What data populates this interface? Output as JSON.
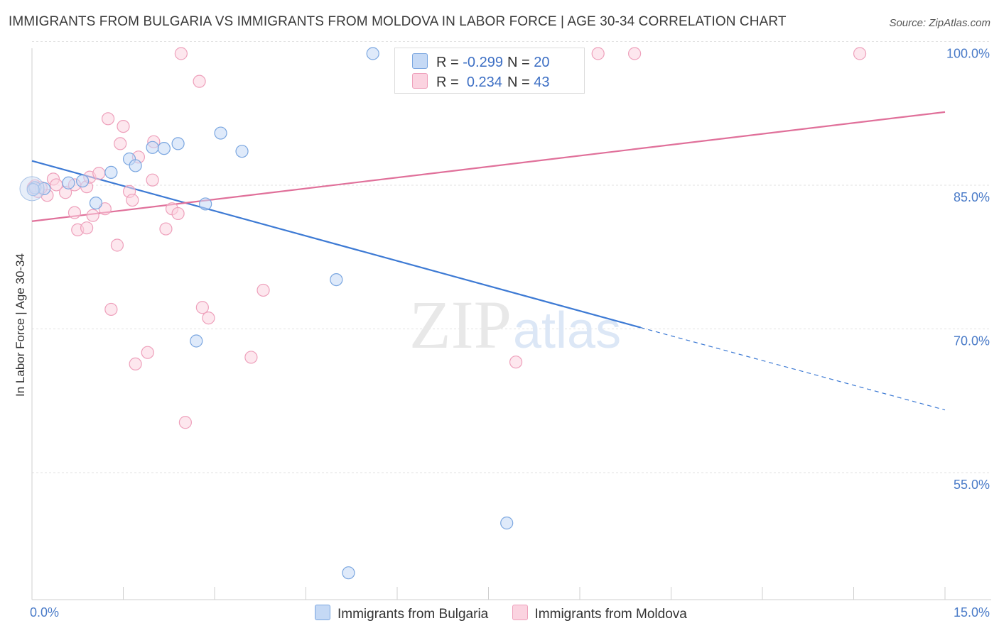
{
  "title": "IMMIGRANTS FROM BULGARIA VS IMMIGRANTS FROM MOLDOVA IN LABOR FORCE | AGE 30-34 CORRELATION CHART",
  "source": "Source: ZipAtlas.com",
  "watermark": {
    "zip": "ZIP",
    "atlas": "atlas"
  },
  "legend": {
    "rows": [
      {
        "r_label": "R =",
        "r_value": "-0.299",
        "n_label": "N =",
        "n_value": "20",
        "color": "#aac8f0",
        "border": "#7aa6e0"
      },
      {
        "r_label": "R =",
        "r_value": "0.234",
        "n_label": "N =",
        "n_value": "43",
        "color": "#f8c0d2",
        "border": "#eea0bb"
      }
    ]
  },
  "bottom_legend": [
    {
      "label": "Immigrants from Bulgaria",
      "color": "#c5d9f5",
      "border": "#7aa6e0"
    },
    {
      "label": "Immigrants from Moldova",
      "color": "#fbd3e0",
      "border": "#eea0bb"
    }
  ],
  "chart_data": {
    "type": "scatter",
    "title": "IMMIGRANTS FROM BULGARIA VS IMMIGRANTS FROM MOLDOVA IN LABOR FORCE | AGE 30-34 CORRELATION CHART",
    "xlabel": "",
    "ylabel": "In Labor Force | Age 30-34",
    "xlim": [
      0,
      15
    ],
    "ylim": [
      43,
      101
    ],
    "x_tick_labels": [
      "0.0%",
      "15.0%"
    ],
    "y_ticks": [
      55,
      70,
      85,
      100
    ],
    "y_tick_labels": [
      "55.0%",
      "70.0%",
      "85.0%",
      "100.0%"
    ],
    "grid": true,
    "series": [
      {
        "name": "Immigrants from Bulgaria",
        "color": "#7aa6e0",
        "fill": "#c5d9f5",
        "line_color": "#3d7ad4",
        "trend": {
          "x0": 0,
          "y0": 88.8,
          "x1": 10.0,
          "y1": 71.4,
          "dash_to_x": 15,
          "dash_to_y": 62.8
        },
        "points": [
          [
            0.05,
            86.0
          ],
          [
            0.2,
            85.9
          ],
          [
            0.6,
            86.5
          ],
          [
            0.83,
            86.7
          ],
          [
            1.05,
            84.4
          ],
          [
            1.3,
            87.6
          ],
          [
            1.6,
            89.0
          ],
          [
            1.7,
            88.3
          ],
          [
            1.98,
            90.2
          ],
          [
            2.17,
            90.1
          ],
          [
            2.4,
            90.6
          ],
          [
            2.85,
            84.3
          ],
          [
            3.1,
            91.7
          ],
          [
            3.45,
            89.8
          ],
          [
            2.7,
            70.0
          ],
          [
            5.0,
            76.4
          ],
          [
            5.6,
            100.0
          ],
          [
            7.8,
            51.0
          ],
          [
            5.2,
            45.8
          ],
          [
            0.02,
            85.8
          ]
        ]
      },
      {
        "name": "Immigrants from Moldova",
        "color": "#eea0bb",
        "fill": "#fbd3e0",
        "line_color": "#e0709a",
        "trend": {
          "x0": 0,
          "y0": 82.5,
          "x1": 15,
          "y1": 93.9
        },
        "points": [
          [
            0.02,
            86.0
          ],
          [
            0.1,
            85.6
          ],
          [
            0.25,
            85.2
          ],
          [
            0.35,
            86.9
          ],
          [
            0.4,
            86.3
          ],
          [
            0.55,
            85.5
          ],
          [
            0.7,
            86.3
          ],
          [
            0.7,
            83.4
          ],
          [
            0.75,
            81.6
          ],
          [
            0.9,
            86.1
          ],
          [
            0.9,
            81.8
          ],
          [
            0.95,
            87.1
          ],
          [
            1.0,
            83.1
          ],
          [
            1.1,
            87.5
          ],
          [
            1.2,
            83.8
          ],
          [
            1.25,
            93.2
          ],
          [
            1.45,
            90.6
          ],
          [
            1.4,
            80.0
          ],
          [
            1.3,
            73.3
          ],
          [
            1.5,
            92.4
          ],
          [
            1.6,
            85.6
          ],
          [
            1.65,
            84.7
          ],
          [
            1.75,
            89.2
          ],
          [
            1.7,
            67.6
          ],
          [
            1.9,
            68.8
          ],
          [
            1.98,
            86.8
          ],
          [
            2.0,
            90.8
          ],
          [
            2.2,
            81.7
          ],
          [
            2.3,
            83.8
          ],
          [
            2.4,
            83.3
          ],
          [
            2.45,
            100.0
          ],
          [
            2.52,
            61.5
          ],
          [
            2.75,
            97.1
          ],
          [
            2.8,
            73.5
          ],
          [
            2.9,
            72.4
          ],
          [
            3.6,
            68.3
          ],
          [
            3.8,
            75.3
          ],
          [
            7.95,
            67.8
          ],
          [
            9.3,
            100.0
          ],
          [
            9.9,
            100.0
          ],
          [
            13.6,
            100.0
          ],
          [
            0.05,
            86.2
          ],
          [
            0.15,
            86.0
          ]
        ]
      }
    ]
  }
}
